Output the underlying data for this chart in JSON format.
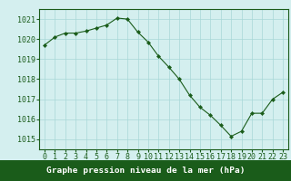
{
  "x": [
    0,
    1,
    2,
    3,
    4,
    5,
    6,
    7,
    8,
    9,
    10,
    11,
    12,
    13,
    14,
    15,
    16,
    17,
    18,
    19,
    20,
    21,
    22,
    23
  ],
  "y": [
    1019.7,
    1020.1,
    1020.3,
    1020.3,
    1020.4,
    1020.55,
    1020.7,
    1021.05,
    1021.0,
    1020.35,
    1019.85,
    1019.15,
    1018.6,
    1018.0,
    1017.2,
    1016.6,
    1016.2,
    1015.7,
    1015.15,
    1015.4,
    1016.3,
    1016.3,
    1017.0,
    1017.35
  ],
  "ylim": [
    1014.5,
    1021.5
  ],
  "yticks": [
    1015,
    1016,
    1017,
    1018,
    1019,
    1020,
    1021
  ],
  "xticks": [
    0,
    1,
    2,
    3,
    4,
    5,
    6,
    7,
    8,
    9,
    10,
    11,
    12,
    13,
    14,
    15,
    16,
    17,
    18,
    19,
    20,
    21,
    22,
    23
  ],
  "line_color": "#1a5c1a",
  "marker_color": "#1a5c1a",
  "bg_color": "#d4efef",
  "grid_color": "#a8d8d8",
  "tick_color": "#1a5c1a",
  "spine_color": "#1a5c1a",
  "bottom_bar_color": "#1a5c1a",
  "xlabel": "Graphe pression niveau de la mer (hPa)",
  "font_size_xlabel": 6.8,
  "font_size_ticks": 6.0
}
